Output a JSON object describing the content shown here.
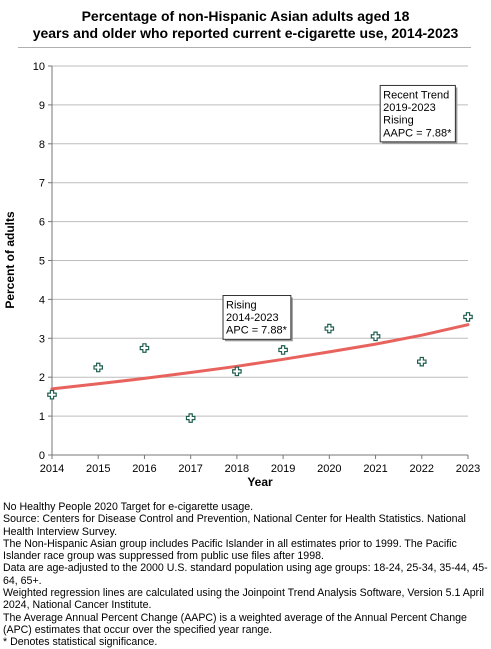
{
  "chart_data": {
    "type": "scatter",
    "title_lines": [
      "Percentage of non-Hispanic Asian adults aged 18",
      "years and older who reported current e-cigarette use, 2014-2023"
    ],
    "xlabel": "Year",
    "ylabel": "Percent of adults",
    "xlim": [
      2014,
      2023
    ],
    "ylim": [
      0,
      10
    ],
    "x_ticks": [
      "2014",
      "2015",
      "2016",
      "2017",
      "2018",
      "2019",
      "2020",
      "2021",
      "2022",
      "2023"
    ],
    "y_ticks": [
      "0",
      "1",
      "2",
      "3",
      "4",
      "5",
      "6",
      "7",
      "8",
      "9",
      "10"
    ],
    "grid": true,
    "series": [
      {
        "marker": "plus",
        "x": [
          2014,
          2015,
          2016,
          2017,
          2018,
          2019,
          2020,
          2021,
          2022,
          2023
        ],
        "y": [
          1.55,
          2.25,
          2.75,
          0.95,
          2.15,
          2.7,
          3.25,
          3.05,
          2.4,
          3.55
        ]
      }
    ],
    "trend_line": {
      "x": [
        2014,
        2015,
        2016,
        2017,
        2018,
        2019,
        2020,
        2021,
        2022,
        2023
      ],
      "y": [
        1.7,
        1.83,
        1.97,
        2.12,
        2.28,
        2.46,
        2.65,
        2.85,
        3.08,
        3.35
      ]
    },
    "annotations": [
      {
        "lines": [
          "Recent Trend",
          "2019-2023",
          "Rising",
          "AAPC =  7.88*"
        ],
        "at_x": 2021.1,
        "at_y": 9.5
      },
      {
        "lines": [
          "Rising",
          "2014-2023",
          "APC =  7.88*"
        ],
        "at_x": 2017.7,
        "at_y": 4.1
      }
    ]
  },
  "colors": {
    "trend_line": "#e8635d",
    "marker": "#1f5f4f",
    "marker_fill": "#ffffff",
    "grid": "#bdbdbd",
    "axis": "#777777"
  },
  "footnotes": [
    "No Healthy People 2020 Target for e-cigarette usage.",
    "Source: Centers for Disease Control and Prevention, National Center for Health Statistics. National Health Interview Survey.",
    "The Non-Hispanic Asian group includes Pacific Islander in all estimates prior to 1999. The Pacific Islander race group was suppressed from public use files after 1998.",
    "Data are age-adjusted to the 2000 U.S. standard population using age groups: 18-24, 25-34, 35-44, 45-64, 65+.",
    "Weighted regression lines are calculated using the Joinpoint Trend Analysis Software, Version 5.1 April 2024, National Cancer Institute.",
    "The Average Annual Percent Change (AAPC) is a weighted average of the Annual Percent Change (APC) estimates that occur over the specified year range.",
    "* Denotes statistical significance."
  ]
}
